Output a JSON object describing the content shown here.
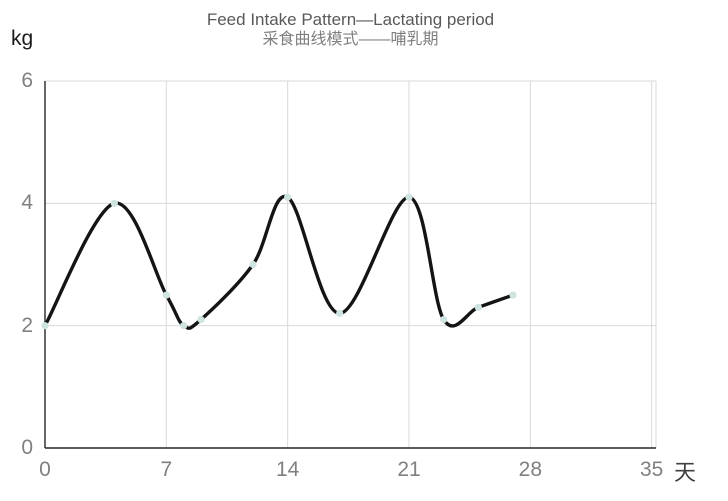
{
  "chart_data": {
    "type": "line",
    "title": "Feed Intake Pattern—Lactating period",
    "subtitle": "采食曲线模式——哺乳期",
    "xlabel": "天",
    "ylabel": "kg",
    "x": [
      0,
      4,
      7,
      8,
      9,
      12,
      14,
      17,
      21,
      23,
      25,
      27
    ],
    "y": [
      2.0,
      4.0,
      2.5,
      2.0,
      2.1,
      3.0,
      4.1,
      2.2,
      4.1,
      2.1,
      2.3,
      2.5
    ],
    "x_tick_labels": [
      "0",
      "7",
      "14",
      "21",
      "28",
      "35"
    ],
    "x_tick_values": [
      0,
      7,
      14,
      21,
      28,
      35
    ],
    "y_tick_labels": [
      "0",
      "2",
      "4",
      "6"
    ],
    "y_tick_values": [
      0,
      2,
      4,
      6
    ],
    "xlim": [
      0,
      35.25
    ],
    "ylim": [
      0,
      6
    ],
    "grid": true,
    "smooth": true,
    "legend": "none",
    "line_color": "#141414",
    "marker_color": "#cde4e1",
    "grid_color": "#d9d9d9",
    "axis_color": "#262626",
    "tick_label_color": "#808080",
    "title_color": "#595959"
  }
}
